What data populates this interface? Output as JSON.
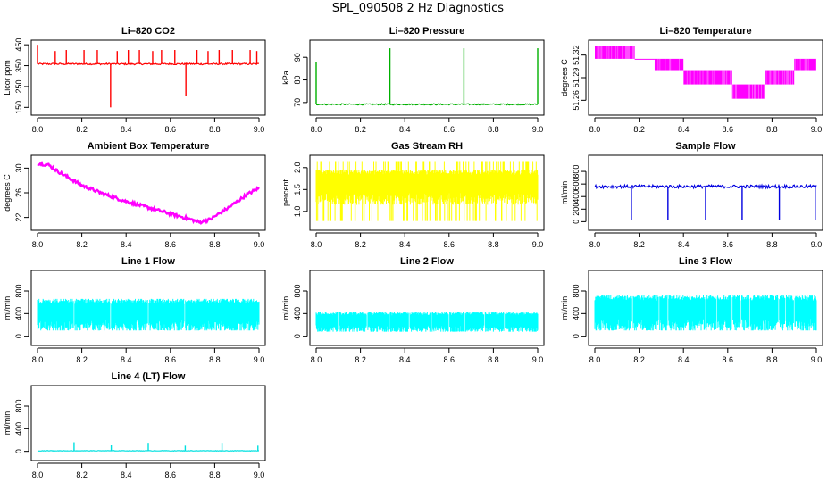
{
  "page_title": "SPL_090508  2 Hz Diagnostics",
  "chart_data": [
    {
      "type": "line",
      "title": "Li–820 CO2",
      "ylabel": "Licor ppm",
      "color": "#ff0000",
      "xlim": [
        8.0,
        9.0
      ],
      "ylim": [
        130,
        455
      ],
      "xticks": [
        8.0,
        8.2,
        8.4,
        8.6,
        8.8,
        9.0
      ],
      "xtick_labels": [
        "8.0",
        "8.2",
        "8.4",
        "8.6",
        "8.8",
        "9.0"
      ],
      "yticks": [
        150,
        250,
        350,
        450
      ],
      "ytick_labels": [
        "150",
        "250",
        "350",
        "450"
      ],
      "profile": "const",
      "base": 358,
      "noise": 4,
      "spikes": [
        [
          8.0,
          450,
          16
        ],
        [
          8.08,
          420,
          8
        ],
        [
          8.13,
          425,
          8
        ],
        [
          8.21,
          425,
          8
        ],
        [
          8.27,
          425,
          8
        ],
        [
          8.33,
          150,
          6
        ],
        [
          8.36,
          420,
          8
        ],
        [
          8.41,
          425,
          8
        ],
        [
          8.46,
          425,
          8
        ],
        [
          8.52,
          420,
          8
        ],
        [
          8.56,
          425,
          8
        ],
        [
          8.62,
          425,
          8
        ],
        [
          8.67,
          205,
          6
        ],
        [
          8.72,
          425,
          8
        ],
        [
          8.77,
          420,
          8
        ],
        [
          8.82,
          425,
          8
        ],
        [
          8.88,
          425,
          8
        ],
        [
          8.96,
          425,
          8
        ],
        [
          8.99,
          420,
          8
        ]
      ]
    },
    {
      "type": "line",
      "title": "Li–820 Pressure",
      "ylabel": "kPa",
      "color": "#00b000",
      "xlim": [
        8.0,
        9.0
      ],
      "ylim": [
        66,
        96
      ],
      "xticks": [
        8.0,
        8.2,
        8.4,
        8.6,
        8.8,
        9.0
      ],
      "xtick_labels": [
        "8.0",
        "8.2",
        "8.4",
        "8.6",
        "8.8",
        "9.0"
      ],
      "yticks": [
        70,
        80,
        90
      ],
      "ytick_labels": [
        "70",
        "80",
        "90"
      ],
      "profile": "const",
      "base": 69.2,
      "noise": 0.3,
      "spikes": [
        [
          8.0,
          88,
          10
        ],
        [
          8.333,
          94,
          10
        ],
        [
          8.667,
          94,
          14
        ],
        [
          9.0,
          94,
          10
        ]
      ]
    },
    {
      "type": "step",
      "title": "Li–820 Temperature",
      "ylabel": "degrees C",
      "color": "#ff00ff",
      "xlim": [
        8.0,
        9.0
      ],
      "ylim": [
        51.245,
        51.335
      ],
      "xticks": [
        8.0,
        8.2,
        8.4,
        8.6,
        8.8,
        9.0
      ],
      "xtick_labels": [
        "8.0",
        "8.2",
        "8.4",
        "8.6",
        "8.8",
        "9.0"
      ],
      "yticks": [
        51.26,
        51.29,
        51.32
      ],
      "ytick_labels": [
        "51.26",
        "51.29",
        "51.32"
      ],
      "levels": [
        51.332,
        51.315,
        51.3,
        51.281,
        51.262
      ],
      "segments": [
        [
          8.0,
          8.18,
          0,
          1
        ],
        [
          8.18,
          8.27,
          1,
          1
        ],
        [
          8.27,
          8.4,
          1,
          2
        ],
        [
          8.4,
          8.62,
          2,
          3
        ],
        [
          8.62,
          8.77,
          3,
          4
        ],
        [
          8.77,
          8.9,
          2,
          3
        ],
        [
          8.9,
          9.0,
          1,
          2
        ]
      ]
    },
    {
      "type": "line",
      "title": "Ambient Box Temperature",
      "ylabel": "degrees C",
      "color": "#ff00ff",
      "xlim": [
        8.0,
        9.0
      ],
      "ylim": [
        20.5,
        31.5
      ],
      "xticks": [
        8.0,
        8.2,
        8.4,
        8.6,
        8.8,
        9.0
      ],
      "xtick_labels": [
        "8.0",
        "8.2",
        "8.4",
        "8.6",
        "8.8",
        "9.0"
      ],
      "yticks": [
        22,
        26,
        30
      ],
      "ytick_labels": [
        "22",
        "26",
        "30"
      ],
      "profile": "curve",
      "noise": 0.25,
      "curve": [
        [
          8.0,
          30.8
        ],
        [
          8.05,
          30.5
        ],
        [
          8.1,
          29.3
        ],
        [
          8.2,
          27.2
        ],
        [
          8.3,
          25.8
        ],
        [
          8.4,
          24.6
        ],
        [
          8.5,
          23.6
        ],
        [
          8.6,
          22.6
        ],
        [
          8.7,
          21.6
        ],
        [
          8.73,
          21.2
        ],
        [
          8.78,
          21.7
        ],
        [
          8.85,
          23.3
        ],
        [
          8.95,
          25.8
        ],
        [
          9.0,
          26.8
        ]
      ],
      "spikes": []
    },
    {
      "type": "band",
      "title": "Gas Stream RH",
      "ylabel": "percent",
      "color": "#ffff00",
      "xlim": [
        8.0,
        9.0
      ],
      "ylim": [
        0.65,
        2.2
      ],
      "xticks": [
        8.0,
        8.2,
        8.4,
        8.6,
        8.8,
        9.0
      ],
      "xtick_labels": [
        "8.0",
        "8.2",
        "8.4",
        "8.6",
        "8.8",
        "9.0"
      ],
      "yticks": [
        1.0,
        1.5,
        2.0
      ],
      "ytick_labels": [
        "1.0",
        "1.5",
        "2.0"
      ],
      "band_low": 1.15,
      "band_high": 1.95,
      "spike_low": 0.78,
      "spike_high": 2.15,
      "spikes": [],
      "gaps": []
    },
    {
      "type": "line",
      "title": "Sample Flow",
      "ylabel": "ml/min",
      "color": "#0000e0",
      "xlim": [
        8.0,
        9.0
      ],
      "ylim": [
        -80,
        1000
      ],
      "xticks": [
        8.0,
        8.2,
        8.4,
        8.6,
        8.8,
        9.0
      ],
      "xtick_labels": [
        "8.0",
        "8.2",
        "8.4",
        "8.6",
        "8.8",
        "9.0"
      ],
      "yticks": [
        0,
        200,
        400,
        600,
        800
      ],
      "ytick_labels": [
        "0",
        "200",
        "400",
        "600",
        "800"
      ],
      "profile": "const",
      "base": 560,
      "noise": 25,
      "spikes": [
        [
          8.165,
          20,
          6
        ],
        [
          8.33,
          20,
          6
        ],
        [
          8.5,
          20,
          6
        ],
        [
          8.665,
          20,
          6
        ],
        [
          8.833,
          20,
          6
        ],
        [
          8.995,
          20,
          6
        ]
      ]
    },
    {
      "type": "band",
      "title": "Line 1 Flow",
      "ylabel": "ml/min",
      "color": "#00ffff",
      "xlim": [
        8.0,
        9.0
      ],
      "ylim": [
        -100,
        1100
      ],
      "xticks": [
        8.0,
        8.2,
        8.4,
        8.6,
        8.8,
        9.0
      ],
      "xtick_labels": [
        "8.0",
        "8.2",
        "8.4",
        "8.6",
        "8.8",
        "9.0"
      ],
      "yticks": [
        0,
        400,
        800
      ],
      "ytick_labels": [
        "0",
        "400",
        "800"
      ],
      "band_low": 100,
      "band_high": 650,
      "spike_low": 100,
      "spike_high": 660,
      "gaps": [
        8.165,
        8.33,
        8.5,
        8.665,
        8.833
      ],
      "spikes": []
    },
    {
      "type": "band",
      "title": "Line 2 Flow",
      "ylabel": "ml/min",
      "color": "#00ffff",
      "xlim": [
        8.0,
        9.0
      ],
      "ylim": [
        -100,
        1100
      ],
      "xticks": [
        8.0,
        8.2,
        8.4,
        8.6,
        8.8,
        9.0
      ],
      "xtick_labels": [
        "8.0",
        "8.2",
        "8.4",
        "8.6",
        "8.8",
        "9.0"
      ],
      "yticks": [
        0,
        400,
        800
      ],
      "ytick_labels": [
        "0",
        "400",
        "800"
      ],
      "band_low": 80,
      "band_high": 420,
      "spike_low": 80,
      "spike_high": 430,
      "gaps": [
        8.1,
        8.23,
        8.33,
        8.42,
        8.52,
        8.6,
        8.67,
        8.76,
        8.85
      ],
      "spikes": []
    },
    {
      "type": "band",
      "title": "Line 3 Flow",
      "ylabel": "ml/min",
      "color": "#00ffff",
      "xlim": [
        8.0,
        9.0
      ],
      "ylim": [
        -100,
        1100
      ],
      "xticks": [
        8.0,
        8.2,
        8.4,
        8.6,
        8.8,
        9.0
      ],
      "xtick_labels": [
        "8.0",
        "8.2",
        "8.4",
        "8.6",
        "8.8",
        "9.0"
      ],
      "yticks": [
        0,
        400,
        800
      ],
      "ytick_labels": [
        "0",
        "400",
        "800"
      ],
      "band_low": 100,
      "band_high": 720,
      "spike_low": 100,
      "spike_high": 730,
      "gaps": [
        8.17,
        8.29,
        8.33,
        8.5,
        8.55,
        8.62,
        8.66,
        8.7,
        8.83,
        8.86,
        8.9
      ],
      "spikes": []
    },
    {
      "type": "line",
      "title": "Line 4 (LT) Flow",
      "ylabel": "ml/min",
      "color": "#00e0e0",
      "xlim": [
        8.0,
        9.0
      ],
      "ylim": [
        -100,
        1100
      ],
      "xticks": [
        8.0,
        8.2,
        8.4,
        8.6,
        8.8,
        9.0
      ],
      "xtick_labels": [
        "8.0",
        "8.2",
        "8.4",
        "8.6",
        "8.8",
        "9.0"
      ],
      "yticks": [
        0,
        400,
        800
      ],
      "ytick_labels": [
        "0",
        "400",
        "800"
      ],
      "profile": "const",
      "base": 10,
      "noise": 4,
      "spikes": [
        [
          8.165,
          160,
          6
        ],
        [
          8.333,
          110,
          6
        ],
        [
          8.5,
          150,
          6
        ],
        [
          8.667,
          100,
          6
        ],
        [
          8.833,
          150,
          6
        ],
        [
          8.995,
          100,
          6
        ]
      ]
    }
  ]
}
